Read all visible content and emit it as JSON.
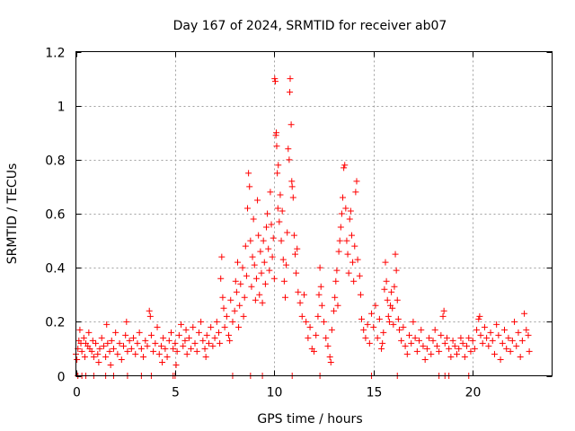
{
  "chart_data": {
    "type": "scatter",
    "title": "Day 167 of 2024, SRMTID for receiver ab07",
    "xlabel": "GPS time / hours",
    "ylabel": "SRMTID / TECUs",
    "xlim": [
      0,
      24
    ],
    "ylim": [
      0,
      1.2
    ],
    "xticks": [
      0,
      5,
      10,
      15,
      20
    ],
    "xtick_labels": [
      "0",
      "5",
      "10",
      "15",
      "20"
    ],
    "yticks": [
      0,
      0.2,
      0.4,
      0.6,
      0.8,
      1.0,
      1.2
    ],
    "ytick_labels": [
      "0",
      "0.2",
      "0.4",
      "0.6",
      "0.8",
      "1",
      "1.2"
    ],
    "grid": true,
    "marker": "+",
    "series": [
      {
        "name": "SRMTID",
        "color": "#ff0000",
        "points": [
          [
            0.0,
            0.08
          ],
          [
            0.05,
            0.06
          ],
          [
            0.1,
            0.1
          ],
          [
            0.15,
            0.13
          ],
          [
            0.2,
            0.17
          ],
          [
            0.25,
            0.12
          ],
          [
            0.3,
            0.09
          ],
          [
            0.4,
            0.14
          ],
          [
            0.45,
            0.07
          ],
          [
            0.5,
            0.12
          ],
          [
            0.6,
            0.11
          ],
          [
            0.65,
            0.16
          ],
          [
            0.7,
            0.1
          ],
          [
            0.8,
            0.09
          ],
          [
            0.85,
            0.13
          ],
          [
            0.9,
            0.07
          ],
          [
            1.0,
            0.12
          ],
          [
            1.1,
            0.08
          ],
          [
            1.15,
            0.05
          ],
          [
            1.2,
            0.1
          ],
          [
            1.3,
            0.14
          ],
          [
            1.4,
            0.11
          ],
          [
            1.5,
            0.07
          ],
          [
            1.55,
            0.19
          ],
          [
            1.6,
            0.12
          ],
          [
            1.7,
            0.09
          ],
          [
            1.75,
            0.04
          ],
          [
            1.8,
            0.13
          ],
          [
            1.9,
            0.1
          ],
          [
            2.0,
            0.16
          ],
          [
            2.1,
            0.08
          ],
          [
            2.2,
            0.12
          ],
          [
            2.3,
            0.06
          ],
          [
            2.4,
            0.11
          ],
          [
            2.5,
            0.15
          ],
          [
            2.55,
            0.2
          ],
          [
            2.6,
            0.09
          ],
          [
            2.7,
            0.13
          ],
          [
            2.8,
            0.1
          ],
          [
            2.9,
            0.14
          ],
          [
            3.0,
            0.08
          ],
          [
            3.1,
            0.12
          ],
          [
            3.2,
            0.16
          ],
          [
            3.3,
            0.1
          ],
          [
            3.4,
            0.07
          ],
          [
            3.5,
            0.13
          ],
          [
            3.6,
            0.11
          ],
          [
            3.7,
            0.24
          ],
          [
            3.75,
            0.22
          ],
          [
            3.8,
            0.15
          ],
          [
            3.9,
            0.09
          ],
          [
            4.0,
            0.12
          ],
          [
            4.1,
            0.18
          ],
          [
            4.2,
            0.08
          ],
          [
            4.3,
            0.11
          ],
          [
            4.35,
            0.05
          ],
          [
            4.4,
            0.14
          ],
          [
            4.5,
            0.1
          ],
          [
            4.6,
            0.07
          ],
          [
            4.7,
            0.13
          ],
          [
            4.8,
            0.16
          ],
          [
            4.9,
            0.1
          ],
          [
            5.0,
            0.12
          ],
          [
            5.05,
            0.04
          ],
          [
            5.1,
            0.09
          ],
          [
            5.2,
            0.15
          ],
          [
            5.3,
            0.19
          ],
          [
            5.4,
            0.11
          ],
          [
            5.5,
            0.13
          ],
          [
            5.55,
            0.17
          ],
          [
            5.6,
            0.08
          ],
          [
            5.7,
            0.14
          ],
          [
            5.8,
            0.1
          ],
          [
            5.9,
            0.18
          ],
          [
            6.0,
            0.12
          ],
          [
            6.1,
            0.09
          ],
          [
            6.2,
            0.16
          ],
          [
            6.3,
            0.2
          ],
          [
            6.4,
            0.13
          ],
          [
            6.5,
            0.1
          ],
          [
            6.55,
            0.07
          ],
          [
            6.6,
            0.15
          ],
          [
            6.7,
            0.12
          ],
          [
            6.8,
            0.18
          ],
          [
            6.9,
            0.11
          ],
          [
            7.0,
            0.14
          ],
          [
            7.1,
            0.2
          ],
          [
            7.2,
            0.16
          ],
          [
            7.25,
            0.12
          ],
          [
            7.3,
            0.36
          ],
          [
            7.35,
            0.44
          ],
          [
            7.4,
            0.29
          ],
          [
            7.45,
            0.25
          ],
          [
            7.5,
            0.18
          ],
          [
            7.6,
            0.22
          ],
          [
            7.7,
            0.15
          ],
          [
            7.75,
            0.13
          ],
          [
            7.8,
            0.28
          ],
          [
            7.9,
            0.2
          ],
          [
            8.0,
            0.24
          ],
          [
            8.05,
            0.35
          ],
          [
            8.1,
            0.31
          ],
          [
            8.15,
            0.42
          ],
          [
            8.2,
            0.18
          ],
          [
            8.25,
            0.26
          ],
          [
            8.3,
            0.34
          ],
          [
            8.4,
            0.4
          ],
          [
            8.45,
            0.22
          ],
          [
            8.5,
            0.29
          ],
          [
            8.55,
            0.48
          ],
          [
            8.6,
            0.37
          ],
          [
            8.65,
            0.62
          ],
          [
            8.7,
            0.75
          ],
          [
            8.75,
            0.7
          ],
          [
            8.8,
            0.5
          ],
          [
            8.85,
            0.33
          ],
          [
            8.9,
            0.44
          ],
          [
            8.95,
            0.58
          ],
          [
            9.0,
            0.41
          ],
          [
            9.05,
            0.28
          ],
          [
            9.1,
            0.36
          ],
          [
            9.15,
            0.65
          ],
          [
            9.2,
            0.52
          ],
          [
            9.25,
            0.3
          ],
          [
            9.3,
            0.46
          ],
          [
            9.35,
            0.38
          ],
          [
            9.4,
            0.27
          ],
          [
            9.45,
            0.5
          ],
          [
            9.5,
            0.42
          ],
          [
            9.55,
            0.34
          ],
          [
            9.6,
            0.55
          ],
          [
            9.65,
            0.6
          ],
          [
            9.7,
            0.47
          ],
          [
            9.75,
            0.39
          ],
          [
            9.8,
            0.68
          ],
          [
            9.85,
            0.56
          ],
          [
            9.9,
            0.44
          ],
          [
            9.95,
            0.51
          ],
          [
            10.0,
            0.36
          ],
          [
            10.02,
            1.1
          ],
          [
            10.05,
            1.09
          ],
          [
            10.08,
            0.89
          ],
          [
            10.1,
            0.9
          ],
          [
            10.12,
            0.85
          ],
          [
            10.15,
            0.75
          ],
          [
            10.18,
            0.62
          ],
          [
            10.2,
            0.78
          ],
          [
            10.25,
            0.57
          ],
          [
            10.3,
            0.67
          ],
          [
            10.35,
            0.5
          ],
          [
            10.4,
            0.61
          ],
          [
            10.45,
            0.43
          ],
          [
            10.5,
            0.35
          ],
          [
            10.55,
            0.29
          ],
          [
            10.6,
            0.41
          ],
          [
            10.65,
            0.53
          ],
          [
            10.7,
            0.84
          ],
          [
            10.75,
            0.8
          ],
          [
            10.78,
            1.05
          ],
          [
            10.8,
            1.1
          ],
          [
            10.85,
            0.93
          ],
          [
            10.88,
            0.72
          ],
          [
            10.9,
            0.7
          ],
          [
            10.95,
            0.66
          ],
          [
            11.0,
            0.52
          ],
          [
            11.05,
            0.45
          ],
          [
            11.1,
            0.38
          ],
          [
            11.15,
            0.47
          ],
          [
            11.2,
            0.31
          ],
          [
            11.3,
            0.27
          ],
          [
            11.4,
            0.22
          ],
          [
            11.5,
            0.3
          ],
          [
            11.6,
            0.2
          ],
          [
            11.7,
            0.14
          ],
          [
            11.8,
            0.18
          ],
          [
            11.9,
            0.1
          ],
          [
            12.0,
            0.09
          ],
          [
            12.1,
            0.15
          ],
          [
            12.2,
            0.22
          ],
          [
            12.25,
            0.3
          ],
          [
            12.3,
            0.4
          ],
          [
            12.35,
            0.33
          ],
          [
            12.4,
            0.26
          ],
          [
            12.5,
            0.2
          ],
          [
            12.6,
            0.14
          ],
          [
            12.7,
            0.11
          ],
          [
            12.8,
            0.07
          ],
          [
            12.85,
            0.05
          ],
          [
            12.9,
            0.17
          ],
          [
            13.0,
            0.24
          ],
          [
            13.05,
            0.29
          ],
          [
            13.1,
            0.35
          ],
          [
            13.15,
            0.39
          ],
          [
            13.2,
            0.26
          ],
          [
            13.25,
            0.46
          ],
          [
            13.3,
            0.5
          ],
          [
            13.35,
            0.55
          ],
          [
            13.4,
            0.6
          ],
          [
            13.45,
            0.66
          ],
          [
            13.5,
            0.77
          ],
          [
            13.55,
            0.78
          ],
          [
            13.6,
            0.62
          ],
          [
            13.65,
            0.5
          ],
          [
            13.7,
            0.45
          ],
          [
            13.75,
            0.38
          ],
          [
            13.8,
            0.58
          ],
          [
            13.85,
            0.61
          ],
          [
            13.9,
            0.52
          ],
          [
            13.95,
            0.42
          ],
          [
            14.0,
            0.35
          ],
          [
            14.05,
            0.48
          ],
          [
            14.1,
            0.68
          ],
          [
            14.15,
            0.72
          ],
          [
            14.2,
            0.43
          ],
          [
            14.3,
            0.37
          ],
          [
            14.35,
            0.3
          ],
          [
            14.4,
            0.21
          ],
          [
            14.5,
            0.17
          ],
          [
            14.6,
            0.14
          ],
          [
            14.7,
            0.19
          ],
          [
            14.8,
            0.12
          ],
          [
            14.9,
            0.23
          ],
          [
            15.0,
            0.18
          ],
          [
            15.1,
            0.26
          ],
          [
            15.2,
            0.14
          ],
          [
            15.3,
            0.21
          ],
          [
            15.4,
            0.1
          ],
          [
            15.45,
            0.12
          ],
          [
            15.5,
            0.16
          ],
          [
            15.55,
            0.32
          ],
          [
            15.6,
            0.42
          ],
          [
            15.65,
            0.35
          ],
          [
            15.7,
            0.28
          ],
          [
            15.75,
            0.22
          ],
          [
            15.8,
            0.2
          ],
          [
            15.85,
            0.26
          ],
          [
            15.9,
            0.31
          ],
          [
            15.95,
            0.25
          ],
          [
            16.0,
            0.19
          ],
          [
            16.05,
            0.33
          ],
          [
            16.1,
            0.45
          ],
          [
            16.15,
            0.39
          ],
          [
            16.2,
            0.28
          ],
          [
            16.25,
            0.21
          ],
          [
            16.3,
            0.17
          ],
          [
            16.4,
            0.13
          ],
          [
            16.5,
            0.18
          ],
          [
            16.6,
            0.11
          ],
          [
            16.7,
            0.08
          ],
          [
            16.8,
            0.15
          ],
          [
            16.9,
            0.12
          ],
          [
            17.0,
            0.2
          ],
          [
            17.1,
            0.14
          ],
          [
            17.2,
            0.09
          ],
          [
            17.3,
            0.13
          ],
          [
            17.4,
            0.17
          ],
          [
            17.5,
            0.11
          ],
          [
            17.6,
            0.06
          ],
          [
            17.7,
            0.1
          ],
          [
            17.8,
            0.14
          ],
          [
            17.9,
            0.08
          ],
          [
            18.0,
            0.13
          ],
          [
            18.1,
            0.17
          ],
          [
            18.2,
            0.11
          ],
          [
            18.3,
            0.09
          ],
          [
            18.4,
            0.15
          ],
          [
            18.5,
            0.22
          ],
          [
            18.55,
            0.24
          ],
          [
            18.6,
            0.12
          ],
          [
            18.7,
            0.14
          ],
          [
            18.8,
            0.1
          ],
          [
            18.9,
            0.07
          ],
          [
            19.0,
            0.13
          ],
          [
            19.1,
            0.11
          ],
          [
            19.2,
            0.08
          ],
          [
            19.3,
            0.1
          ],
          [
            19.4,
            0.14
          ],
          [
            19.5,
            0.12
          ],
          [
            19.6,
            0.07
          ],
          [
            19.7,
            0.11
          ],
          [
            19.8,
            0.14
          ],
          [
            19.9,
            0.09
          ],
          [
            20.0,
            0.13
          ],
          [
            20.1,
            0.1
          ],
          [
            20.2,
            0.17
          ],
          [
            20.3,
            0.21
          ],
          [
            20.35,
            0.22
          ],
          [
            20.4,
            0.15
          ],
          [
            20.5,
            0.12
          ],
          [
            20.6,
            0.18
          ],
          [
            20.7,
            0.14
          ],
          [
            20.8,
            0.11
          ],
          [
            20.9,
            0.16
          ],
          [
            21.0,
            0.13
          ],
          [
            21.1,
            0.08
          ],
          [
            21.2,
            0.19
          ],
          [
            21.3,
            0.15
          ],
          [
            21.4,
            0.06
          ],
          [
            21.5,
            0.12
          ],
          [
            21.6,
            0.17
          ],
          [
            21.7,
            0.1
          ],
          [
            21.8,
            0.14
          ],
          [
            21.9,
            0.09
          ],
          [
            22.0,
            0.13
          ],
          [
            22.1,
            0.2
          ],
          [
            22.2,
            0.11
          ],
          [
            22.3,
            0.16
          ],
          [
            22.4,
            0.07
          ],
          [
            22.5,
            0.13
          ],
          [
            22.6,
            0.23
          ],
          [
            22.7,
            0.17
          ],
          [
            22.8,
            0.15
          ],
          [
            22.85,
            0.09
          ]
        ],
        "zero_points": [
          0.1,
          0.3,
          0.5,
          0.9,
          1.5,
          1.9,
          2.6,
          3.3,
          3.8,
          4.9,
          5.0,
          7.9,
          8.8,
          9.4,
          10.9,
          12.3,
          14.9,
          16.2,
          18.3,
          18.6,
          18.8,
          19.8
        ]
      }
    ]
  }
}
